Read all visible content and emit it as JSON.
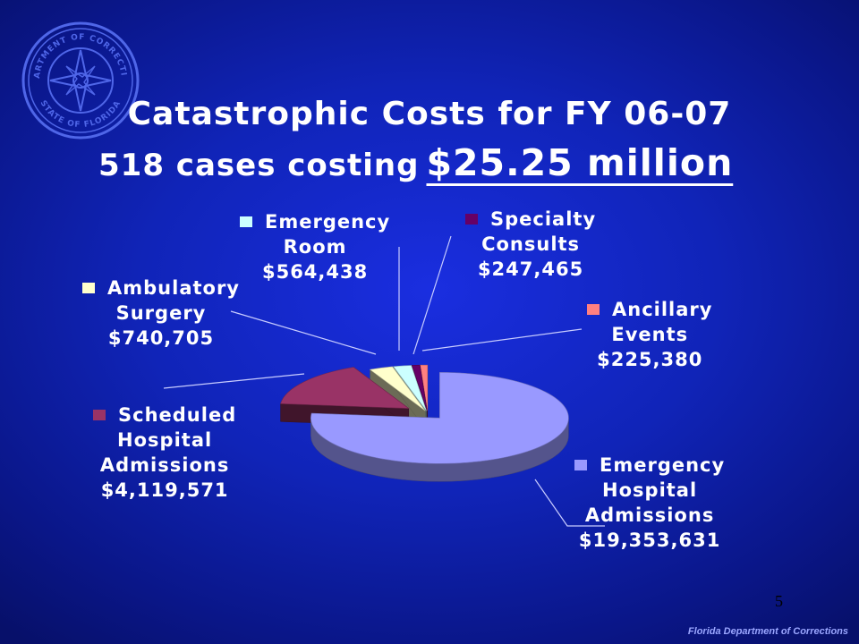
{
  "slide": {
    "title": "Catastrophic Costs for FY 06-07",
    "subtitle_prefix": "518 cases costing",
    "subtitle_amount": "$25.25 million",
    "page_number": "5",
    "footer": "Florida Department of Corrections",
    "seal_text_top": "DEPARTMENT OF CORRECTIONS",
    "seal_text_bottom": "STATE OF FLORIDA"
  },
  "colors": {
    "emergency_hospital": "#9999ff",
    "scheduled_hospital": "#993366",
    "ambulatory_surgery": "#ffffcc",
    "emergency_room": "#ccffff",
    "specialty_consults": "#660066",
    "ancillary_events": "#ff8080"
  },
  "chart_data": {
    "type": "pie",
    "title": "Catastrophic Costs for FY 06-07",
    "total_label": "$25.25 million",
    "slices": [
      {
        "key": "emergency_hospital",
        "label_lines": [
          "Emergency",
          "Hospital",
          "Admissions"
        ],
        "amount": "$19,353,631",
        "value": 19353631
      },
      {
        "key": "scheduled_hospital",
        "label_lines": [
          "Scheduled",
          "Hospital",
          "Admissions"
        ],
        "amount": "$4,119,571",
        "value": 4119571
      },
      {
        "key": "ambulatory_surgery",
        "label_lines": [
          "Ambulatory",
          "Surgery"
        ],
        "amount": "$740,705",
        "value": 740705
      },
      {
        "key": "emergency_room",
        "label_lines": [
          "Emergency",
          "Room"
        ],
        "amount": "$564,438",
        "value": 564438
      },
      {
        "key": "specialty_consults",
        "label_lines": [
          "Specialty",
          "Consults"
        ],
        "amount": "$247,465",
        "value": 247465
      },
      {
        "key": "ancillary_events",
        "label_lines": [
          "Ancillary",
          "Events"
        ],
        "amount": "$225,380",
        "value": 225380
      }
    ],
    "legend": "labels-around-pie"
  }
}
